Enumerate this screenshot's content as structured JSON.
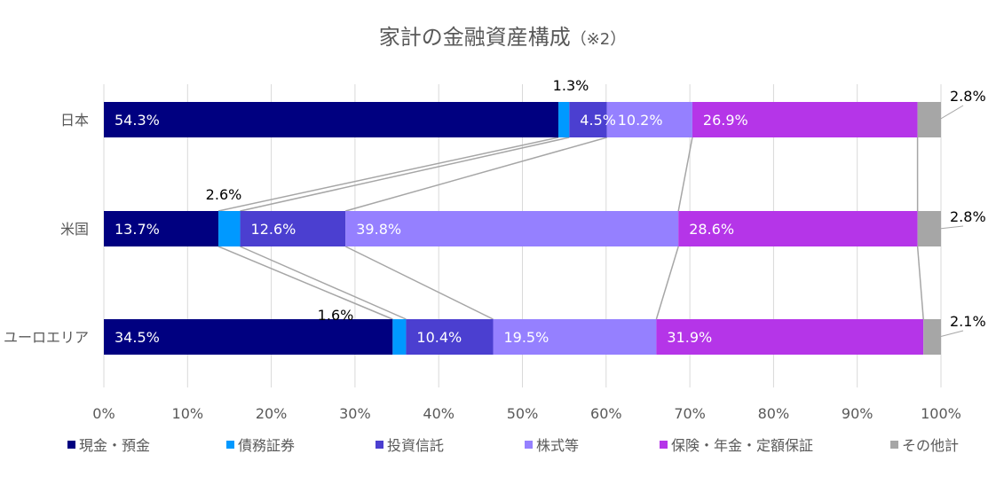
{
  "chart_data": {
    "type": "bar",
    "orientation": "horizontal",
    "stacked": "percent",
    "title": "家計の金融資産構成",
    "title_note": "（※2）",
    "categories": [
      "日本",
      "米国",
      "ユーロエリア"
    ],
    "series": [
      {
        "name": "現金・預金",
        "color": "#000080",
        "values": [
          54.3,
          13.7,
          34.5
        ]
      },
      {
        "name": "債務証券",
        "color": "#0099FF",
        "values": [
          1.3,
          2.6,
          1.6
        ]
      },
      {
        "name": "投資信託",
        "color": "#4B3FD0",
        "values": [
          4.5,
          12.6,
          10.4
        ]
      },
      {
        "name": "株式等",
        "color": "#9580FF",
        "values": [
          10.2,
          39.8,
          19.5
        ]
      },
      {
        "name": "保険・年金・定額保証",
        "color": "#B535E8",
        "values": [
          26.9,
          28.6,
          31.9
        ]
      },
      {
        "name": "その他計",
        "color": "#A6A6A6",
        "values": [
          2.8,
          2.8,
          2.1
        ]
      }
    ],
    "labels": [
      [
        "54.3%",
        "1.3%",
        "4.5%",
        "10.2%",
        "26.9%",
        "2.8%"
      ],
      [
        "13.7%",
        "2.6%",
        "12.6%",
        "39.8%",
        "28.6%",
        "2.8%"
      ],
      [
        "34.5%",
        "1.6%",
        "10.4%",
        "19.5%",
        "31.9%",
        "2.1%"
      ]
    ],
    "xticks": [
      "0%",
      "10%",
      "20%",
      "30%",
      "40%",
      "50%",
      "60%",
      "70%",
      "80%",
      "90%",
      "100%"
    ],
    "xlim": [
      0,
      100
    ],
    "grid": true,
    "legend": "bottom",
    "series_lines": true
  }
}
